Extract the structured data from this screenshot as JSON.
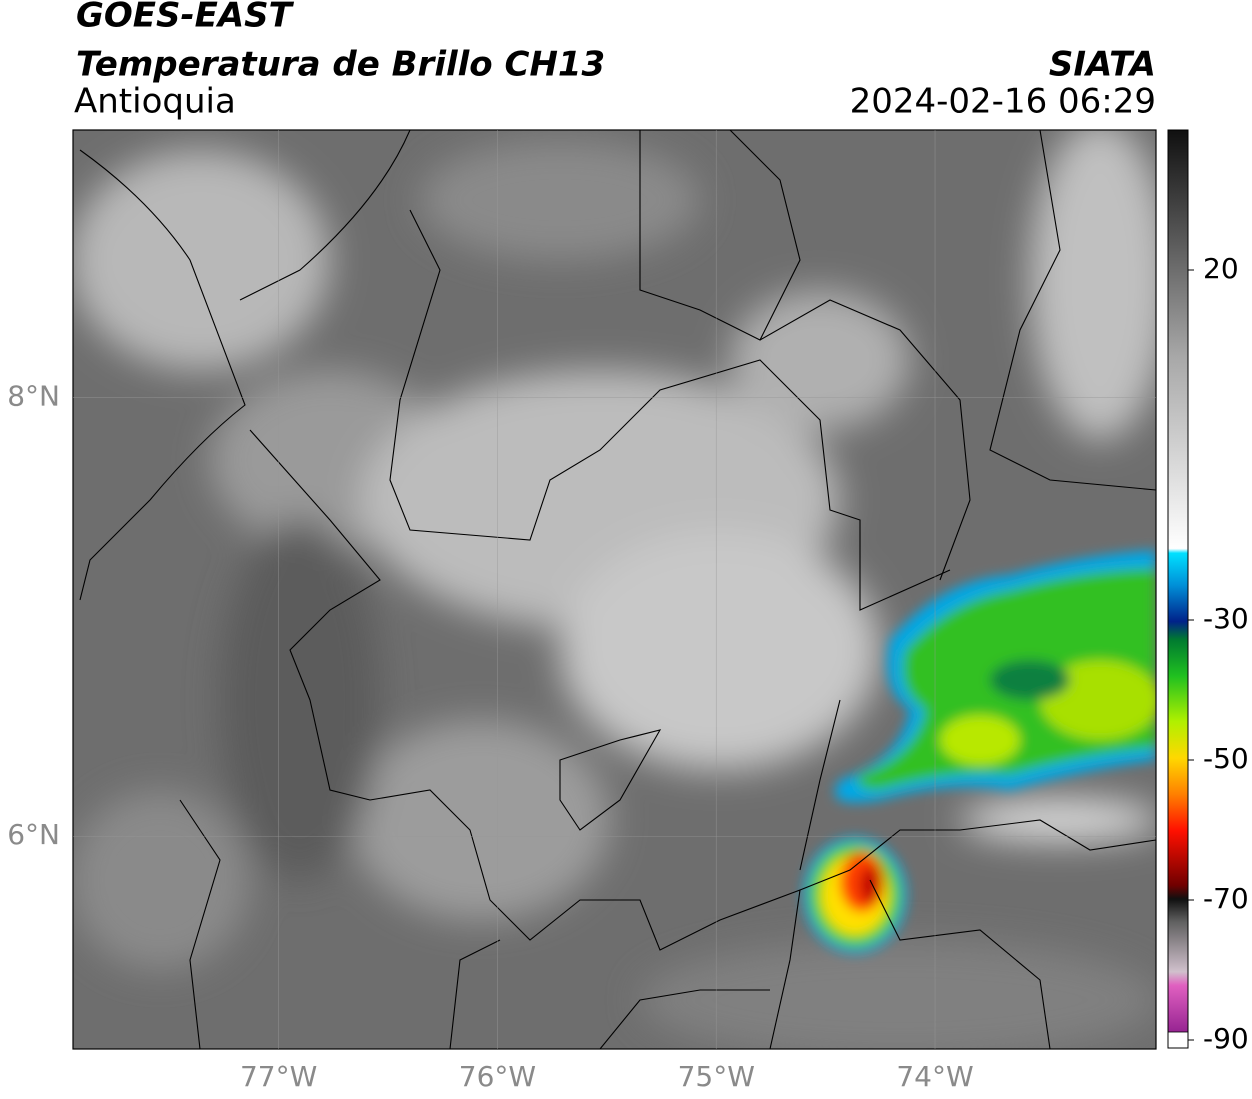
{
  "header": {
    "title": "GOES-EAST",
    "subtitle": "Temperatura de Brillo CH13",
    "region": "Antioquia",
    "source": "SIATA",
    "datetime": "2024-02-16 06:29"
  },
  "map": {
    "lon_lim": [
      -77.94,
      -72.99
    ],
    "lat_lim": [
      5.03,
      9.22
    ],
    "lon_ticks": [
      {
        "value": -77,
        "label": "77°W"
      },
      {
        "value": -76,
        "label": "76°W"
      },
      {
        "value": -75,
        "label": "75°W"
      },
      {
        "value": -74,
        "label": "74°W"
      }
    ],
    "lat_ticks": [
      {
        "value": 8,
        "label": "8°N"
      },
      {
        "value": 6,
        "label": "6°N"
      }
    ]
  },
  "colorbar": {
    "lim": [
      -90,
      40
    ],
    "ticks": [
      20,
      -30,
      -50,
      -70,
      -90
    ]
  }
}
